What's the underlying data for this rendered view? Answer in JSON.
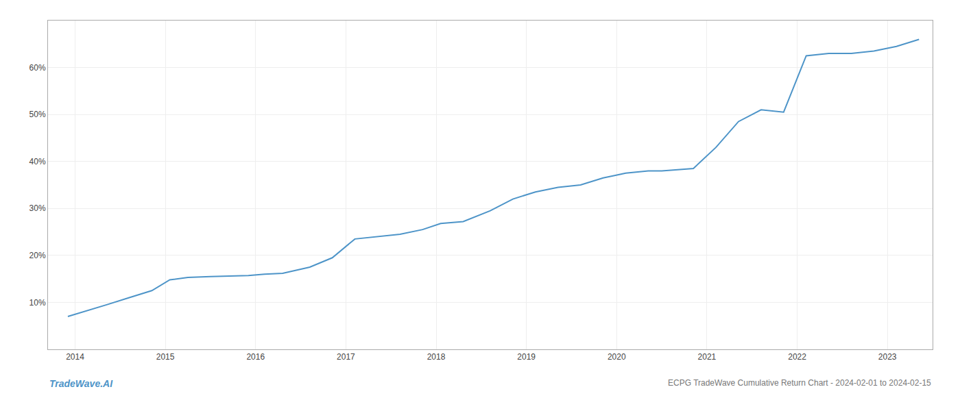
{
  "chart_data": {
    "type": "line",
    "title": "ECPG TradeWave Cumulative Return Chart - 2024-02-01 to 2024-02-15",
    "annotations": [
      "TradeWave.AI"
    ],
    "x": [
      2013.92,
      2014.1,
      2014.35,
      2014.6,
      2014.85,
      2015.05,
      2015.25,
      2015.5,
      2015.75,
      2015.92,
      2016.1,
      2016.3,
      2016.6,
      2016.85,
      2017.1,
      2017.35,
      2017.6,
      2017.85,
      2018.05,
      2018.3,
      2018.6,
      2018.85,
      2019.1,
      2019.35,
      2019.6,
      2019.85,
      2020.1,
      2020.35,
      2020.5,
      2020.65,
      2020.85,
      2021.1,
      2021.35,
      2021.6,
      2021.85,
      2022.1,
      2022.35,
      2022.6,
      2022.85,
      2023.1,
      2023.35
    ],
    "values": [
      7.0,
      8.0,
      9.5,
      11.0,
      12.5,
      14.8,
      15.3,
      15.5,
      15.6,
      15.7,
      16.0,
      16.2,
      17.5,
      19.5,
      23.5,
      24.0,
      24.5,
      25.5,
      26.8,
      27.2,
      29.5,
      32.0,
      33.5,
      34.5,
      35.0,
      36.5,
      37.5,
      38.0,
      38.0,
      38.2,
      38.5,
      43.0,
      48.5,
      51.0,
      50.5,
      62.5,
      63.0,
      63.0,
      63.5,
      64.5,
      66.0
    ],
    "color": "#4d94c8",
    "xlim": [
      2013.7,
      2023.5
    ],
    "xticks": [
      2014,
      2015,
      2016,
      2017,
      2018,
      2019,
      2020,
      2021,
      2022,
      2023
    ],
    "ylim": [
      0,
      70
    ],
    "yticks": [
      {
        "value": 10,
        "label": "10%"
      },
      {
        "value": 20,
        "label": "20%"
      },
      {
        "value": 30,
        "label": "30%"
      },
      {
        "value": 40,
        "label": "40%"
      },
      {
        "value": 50,
        "label": "50%"
      },
      {
        "value": 60,
        "label": "60%"
      }
    ],
    "grid": true
  }
}
